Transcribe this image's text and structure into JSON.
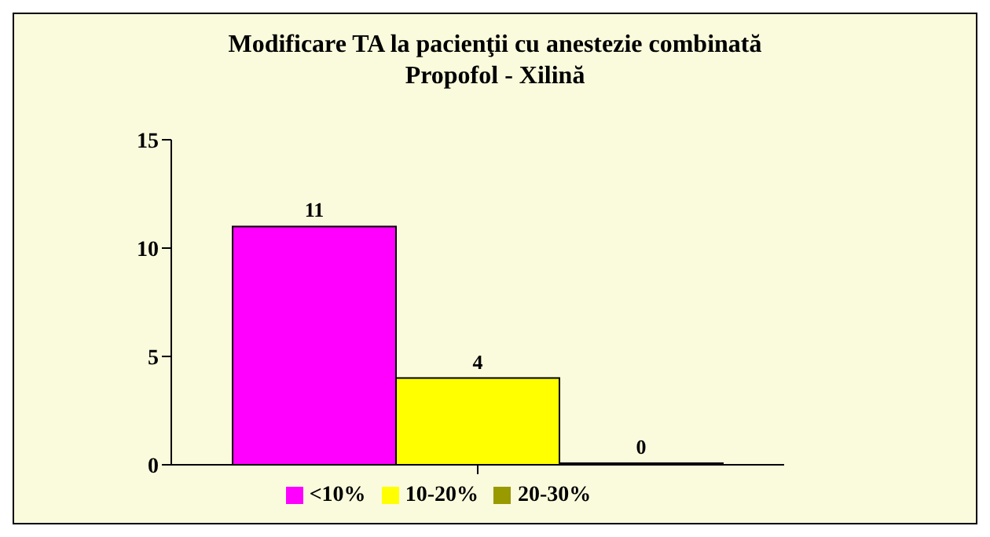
{
  "chart_data": {
    "type": "bar",
    "title": "Modificare TA la pacienţii cu anestezie combinată",
    "subtitle": "Propofol - Xilină",
    "categories": [
      null
    ],
    "series": [
      {
        "name": "<10%",
        "color": "#ff00ff",
        "values": [
          11
        ]
      },
      {
        "name": "10-20%",
        "color": "#ffff00",
        "values": [
          4
        ]
      },
      {
        "name": "20-30%",
        "color": "#999900",
        "values": [
          0
        ]
      }
    ],
    "ylim": [
      0,
      15
    ],
    "yticks": [
      0,
      5,
      10,
      15
    ],
    "grid": false,
    "legend": "bottom",
    "data_labels": true
  }
}
